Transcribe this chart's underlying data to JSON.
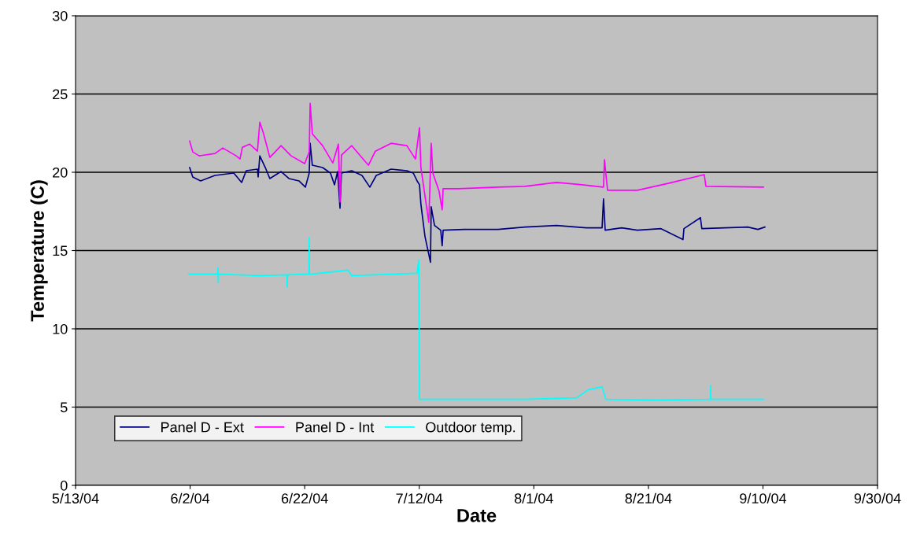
{
  "chart_data": {
    "type": "line",
    "xlabel": "Date",
    "ylabel": "Temperature (C)",
    "xlim": [
      "2004-05-13",
      "2004-09-30"
    ],
    "xticks": [
      {
        "value": "2004-05-13",
        "label": "5/13/04"
      },
      {
        "value": "2004-06-02",
        "label": "6/2/04"
      },
      {
        "value": "2004-06-22",
        "label": "6/22/04"
      },
      {
        "value": "2004-07-12",
        "label": "7/12/04"
      },
      {
        "value": "2004-08-01",
        "label": "8/1/04"
      },
      {
        "value": "2004-08-21",
        "label": "8/21/04"
      },
      {
        "value": "2004-09-10",
        "label": "9/10/04"
      },
      {
        "value": "2004-09-30",
        "label": "9/30/04"
      }
    ],
    "ylim": [
      0,
      30
    ],
    "yticks": [
      0,
      5,
      10,
      15,
      20,
      25,
      30
    ],
    "grid": "y",
    "legend": "bottom left",
    "marker": "none",
    "line_style": "solid",
    "series": [
      {
        "name": "Panel D - Ext",
        "color": "#000080",
        "x": [
          "2004-06-01T22:00",
          "2004-06-02T11:00",
          "2004-06-03T20:00",
          "2004-06-06T08:00",
          "2004-06-09T15:00",
          "2004-06-11T00:00",
          "2004-06-11T19:00",
          "2004-06-13T18:00",
          "2004-06-13T21:00",
          "2004-06-14T04:00",
          "2004-06-15T03:00",
          "2004-06-15T22:00",
          "2004-06-17T21:00",
          "2004-06-19T06:00",
          "2004-06-21T00:00",
          "2004-06-22T03:00",
          "2004-06-22T19:00",
          "2004-06-22T23:00",
          "2004-06-23T08:00",
          "2004-06-25T03:00",
          "2004-06-26T12:00",
          "2004-06-27T05:00",
          "2004-06-27T18:00",
          "2004-06-28T04:00",
          "2004-06-28T10:00",
          "2004-06-30T05:00",
          "2004-07-02T00:00",
          "2004-07-03T09:00",
          "2004-07-04T12:00",
          "2004-07-07T02:00",
          "2004-07-09T20:00",
          "2004-07-10T23:00",
          "2004-07-11T15:00",
          "2004-07-12T01:00",
          "2004-07-12T07:00",
          "2004-07-13T00:00",
          "2004-07-13T23:00",
          "2004-07-14T02:00",
          "2004-07-14T16:00",
          "2004-07-15T18:00",
          "2004-07-16T00:00",
          "2004-07-16T04:00",
          "2004-07-19T21:00",
          "2004-07-25T18:00",
          "2004-07-30T11:00",
          "2004-08-04T23:00",
          "2004-08-10T04:00",
          "2004-08-12T22:00",
          "2004-08-13T04:00",
          "2004-08-13T11:00",
          "2004-08-16T08:00",
          "2004-08-19T02:00",
          "2004-08-23T05:00",
          "2004-08-27T01:00",
          "2004-08-27T05:00",
          "2004-08-30T02:00",
          "2004-08-30T08:00",
          "2004-09-07T08:00",
          "2004-09-09T03:00",
          "2004-09-10T08:00"
        ],
        "values": [
          20.3,
          19.7,
          19.45,
          19.8,
          19.95,
          19.35,
          20.1,
          20.2,
          19.7,
          21.05,
          20.3,
          19.6,
          20.05,
          19.6,
          19.45,
          19.05,
          19.95,
          21.85,
          20.45,
          20.3,
          19.95,
          19.2,
          20.05,
          17.7,
          19.95,
          20.1,
          19.8,
          19.05,
          19.8,
          20.2,
          20.1,
          19.95,
          19.45,
          19.2,
          17.95,
          15.9,
          14.25,
          17.8,
          16.6,
          16.3,
          15.3,
          16.3,
          16.35,
          16.35,
          16.5,
          16.6,
          16.45,
          16.45,
          18.3,
          16.3,
          16.45,
          16.3,
          16.4,
          15.7,
          16.4,
          17.1,
          16.4,
          16.5,
          16.35,
          16.5
        ]
      },
      {
        "name": "Panel D - Int",
        "color": "#ff00ff",
        "x": [
          "2004-06-01T22:00",
          "2004-06-02T11:00",
          "2004-06-03T14:00",
          "2004-06-06T08:00",
          "2004-06-07T17:00",
          "2004-06-10T01:00",
          "2004-06-10T17:00",
          "2004-06-11T03:00",
          "2004-06-12T09:00",
          "2004-06-13T18:00",
          "2004-06-14T04:00",
          "2004-06-14T20:00",
          "2004-06-15T22:00",
          "2004-06-17T21:00",
          "2004-06-19T15:00",
          "2004-06-22T00:00",
          "2004-06-22T19:00",
          "2004-06-22T23:00",
          "2004-06-23T08:00",
          "2004-06-25T03:00",
          "2004-06-26T22:00",
          "2004-06-27T21:00",
          "2004-06-28T04:00",
          "2004-06-28T10:00",
          "2004-06-30T05:00",
          "2004-07-03T03:00",
          "2004-07-04T08:00",
          "2004-07-07T02:00",
          "2004-07-09T20:00",
          "2004-07-11T08:00",
          "2004-07-12T01:00",
          "2004-07-12T07:00",
          "2004-07-13T16:00",
          "2004-07-14T02:00",
          "2004-07-14T09:00",
          "2004-07-15T11:00",
          "2004-07-16T00:00",
          "2004-07-16T04:00",
          "2004-07-18T22:00",
          "2004-07-25T18:00",
          "2004-07-30T11:00",
          "2004-08-04T23:00",
          "2004-08-09T11:00",
          "2004-08-13T04:00",
          "2004-08-13T08:00",
          "2004-08-13T21:00",
          "2004-08-19T02:00",
          "2004-08-24T14:00",
          "2004-08-30T18:00",
          "2004-08-31T01:00",
          "2004-09-10T02:00"
        ],
        "values": [
          22.0,
          21.3,
          21.05,
          21.2,
          21.55,
          21.05,
          20.85,
          21.6,
          21.8,
          21.35,
          23.2,
          22.45,
          20.95,
          21.7,
          21.05,
          20.55,
          21.3,
          24.4,
          22.45,
          21.7,
          20.6,
          21.8,
          18.1,
          21.1,
          21.7,
          20.45,
          21.35,
          21.85,
          21.7,
          20.85,
          22.85,
          20.3,
          16.8,
          21.85,
          19.95,
          18.8,
          17.6,
          18.95,
          18.95,
          19.05,
          19.1,
          19.35,
          19.2,
          19.05,
          20.8,
          18.85,
          18.85,
          19.3,
          19.85,
          19.1,
          19.05
        ]
      },
      {
        "name": "Outdoor temp.",
        "color": "#00ffff",
        "x": [
          "2004-06-01T19:00",
          "2004-06-06T20:00",
          "2004-06-06T21:00",
          "2004-06-06T22:00",
          "2004-06-06T23:00",
          "2004-06-14T04:00",
          "2004-06-18T22:00",
          "2004-06-18T23:00",
          "2004-06-19T00:00",
          "2004-06-22T18:00",
          "2004-06-22T19:00",
          "2004-06-22T20:00",
          "2004-06-23T08:00",
          "2004-06-29T13:00",
          "2004-06-30T05:00",
          "2004-07-11T15:00",
          "2004-07-11T22:00",
          "2004-07-12T01:00",
          "2004-07-15T18:00",
          "2004-07-30T11:00",
          "2004-08-08T12:00",
          "2004-08-10T11:00",
          "2004-08-12T22:00",
          "2004-08-13T14:00",
          "2004-08-22T06:00",
          "2004-08-31T20:00",
          "2004-08-31T21:00",
          "2004-08-31T22:00",
          "2004-09-10T02:00"
        ],
        "values": [
          13.5,
          13.5,
          13.9,
          12.95,
          13.5,
          13.4,
          13.45,
          12.65,
          13.45,
          13.5,
          15.8,
          13.5,
          13.5,
          13.75,
          13.4,
          13.55,
          14.4,
          5.5,
          5.5,
          5.5,
          5.6,
          6.1,
          6.3,
          5.5,
          5.45,
          5.5,
          6.4,
          5.5,
          5.5
        ]
      }
    ]
  }
}
